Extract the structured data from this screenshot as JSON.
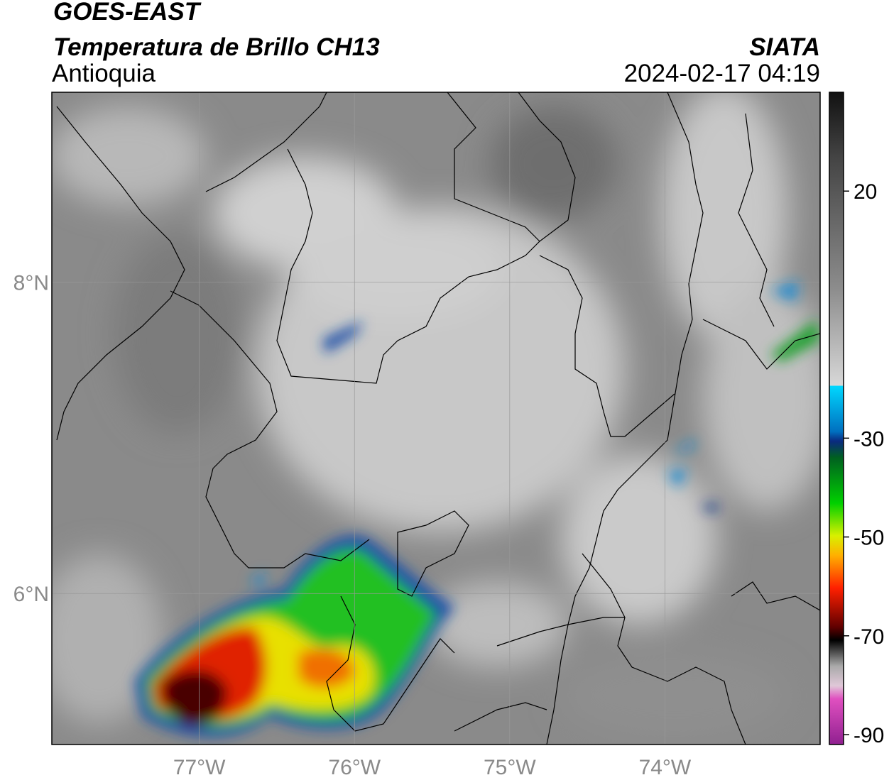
{
  "header": {
    "title": "GOES-EAST",
    "subtitle": "Temperatura de Brillo CH13",
    "region": "Antioquia",
    "source": "SIATA",
    "datetime": "2024-02-17 04:19"
  },
  "map": {
    "xlim": [
      -77.95,
      -73
    ],
    "ylim": [
      5.03,
      9.22
    ],
    "xticks": [
      {
        "value": -77,
        "label": "77°W"
      },
      {
        "value": -76,
        "label": "76°W"
      },
      {
        "value": -75,
        "label": "75°W"
      },
      {
        "value": -74,
        "label": "74°W"
      }
    ],
    "yticks": [
      {
        "value": 8,
        "label": "8°N"
      },
      {
        "value": 6,
        "label": "6°N"
      }
    ]
  },
  "colorbar": {
    "lim": [
      -92,
      40
    ],
    "ticks": [
      20,
      -30,
      -50,
      -70,
      -90
    ]
  }
}
